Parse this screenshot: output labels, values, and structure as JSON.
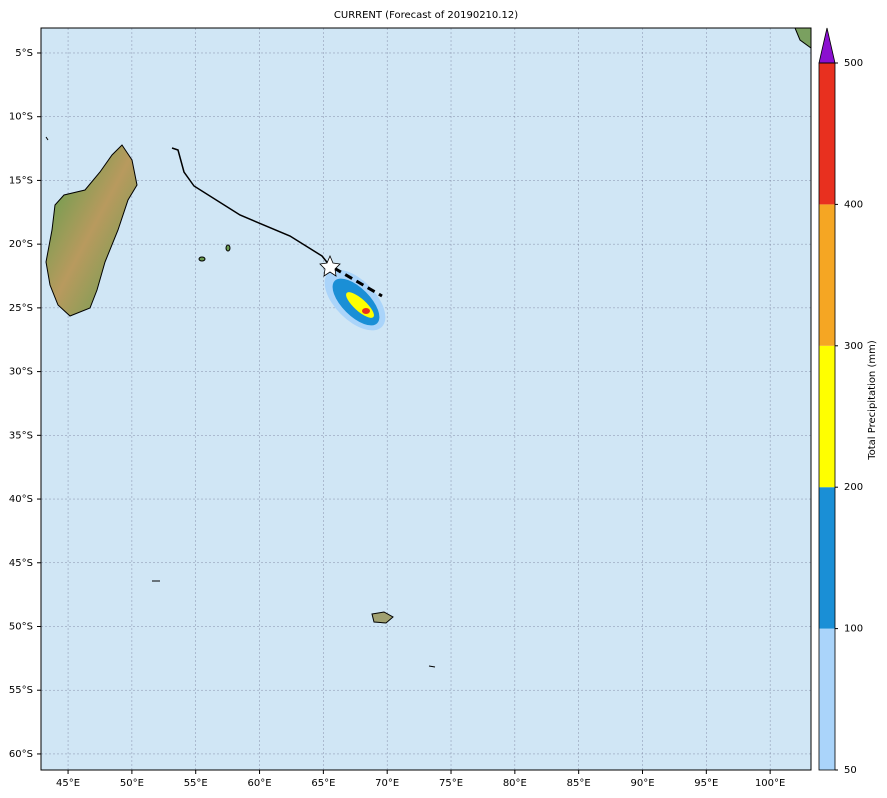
{
  "title": "CURRENT (Forecast of 20190210.12)",
  "map": {
    "xlim": [
      42.88,
      103.2
    ],
    "ylim": [
      -61.26,
      -3.04
    ],
    "xticks": [
      {
        "value": 45,
        "label": "45°E"
      },
      {
        "value": 50,
        "label": "50°E"
      },
      {
        "value": 55,
        "label": "55°E"
      },
      {
        "value": 60,
        "label": "60°E"
      },
      {
        "value": 65,
        "label": "65°E"
      },
      {
        "value": 70,
        "label": "70°E"
      },
      {
        "value": 75,
        "label": "75°E"
      },
      {
        "value": 80,
        "label": "80°E"
      },
      {
        "value": 85,
        "label": "85°E"
      },
      {
        "value": 90,
        "label": "90°E"
      },
      {
        "value": 95,
        "label": "95°E"
      },
      {
        "value": 100,
        "label": "100°E"
      }
    ],
    "yticks": [
      {
        "value": -5,
        "label": "5°S"
      },
      {
        "value": -10,
        "label": "10°S"
      },
      {
        "value": -15,
        "label": "15°S"
      },
      {
        "value": -20,
        "label": "20°S"
      },
      {
        "value": -25,
        "label": "25°S"
      },
      {
        "value": -30,
        "label": "30°S"
      },
      {
        "value": -35,
        "label": "35°S"
      },
      {
        "value": -40,
        "label": "40°S"
      },
      {
        "value": -45,
        "label": "45°S"
      },
      {
        "value": -50,
        "label": "50°S"
      },
      {
        "value": -55,
        "label": "55°S"
      },
      {
        "value": -60,
        "label": "60°S"
      }
    ],
    "grid": true,
    "ocean_color": "#d0e6f5"
  },
  "colorbar": {
    "label": "Total Precipitation (mm)",
    "boundaries": [
      50,
      100,
      200,
      300,
      400,
      500
    ],
    "colors": [
      "#aad4fa",
      "#1a8fd6",
      "#ffff00",
      "#f5a623",
      "#e8301f"
    ],
    "extend_color": "#8b10d0"
  }
}
